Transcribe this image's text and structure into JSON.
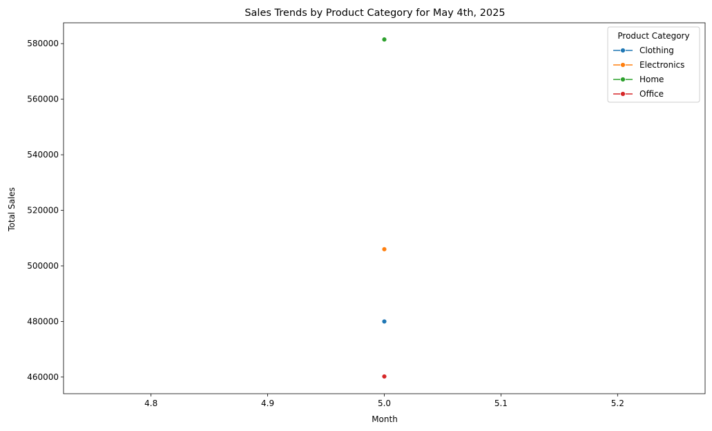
{
  "chart_data": {
    "type": "line",
    "title": "Sales Trends by Product Category for May 4th, 2025",
    "xlabel": "Month",
    "ylabel": "Total Sales",
    "xlim": [
      4.725,
      5.275
    ],
    "ylim": [
      454000,
      587500
    ],
    "x_ticks": [
      4.8,
      4.9,
      5.0,
      5.1,
      5.2
    ],
    "x_tick_labels": [
      "4.8",
      "4.9",
      "5.0",
      "5.1",
      "5.2"
    ],
    "y_ticks": [
      460000,
      480000,
      500000,
      520000,
      540000,
      560000,
      580000
    ],
    "y_tick_labels": [
      "460000",
      "480000",
      "500000",
      "520000",
      "540000",
      "560000",
      "580000"
    ],
    "grid": false,
    "legend": {
      "title": "Product Category",
      "placement": "top-right"
    },
    "series": [
      {
        "name": "Clothing",
        "color": "#1f77b4",
        "points": [
          {
            "x": 5.0,
            "y": 480000
          }
        ]
      },
      {
        "name": "Electronics",
        "color": "#ff7f0e",
        "points": [
          {
            "x": 5.0,
            "y": 506000
          }
        ]
      },
      {
        "name": "Home",
        "color": "#2ca02c",
        "points": [
          {
            "x": 5.0,
            "y": 581500
          }
        ]
      },
      {
        "name": "Office",
        "color": "#d62728",
        "points": [
          {
            "x": 5.0,
            "y": 460200
          }
        ]
      }
    ]
  }
}
